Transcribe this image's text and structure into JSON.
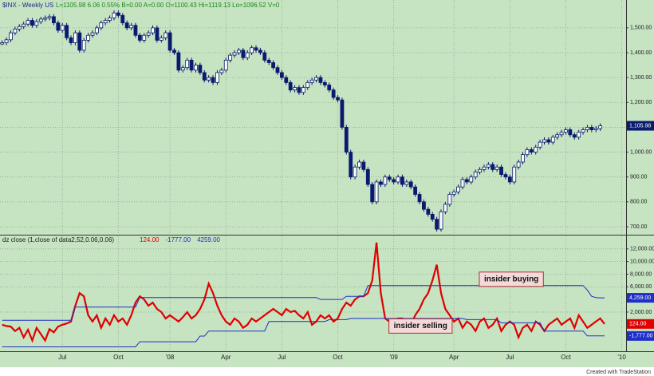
{
  "chart_data": [
    {
      "type": "candlestick",
      "title": "$INX - Weekly  US",
      "quote": "L=1105.98  6.06  0.55%  B=0.00  A=0.00  O=1100.43  Hi=1119.13  Lo=1096.52  V=0",
      "values": [
        1440,
        1452,
        1480,
        1495,
        1505,
        1515,
        1530,
        1510,
        1525,
        1535,
        1540,
        1545,
        1520,
        1490,
        1510,
        1460,
        1440,
        1480,
        1410,
        1450,
        1470,
        1480,
        1500,
        1520,
        1530,
        1540,
        1560,
        1550,
        1520,
        1500,
        1510,
        1470,
        1450,
        1470,
        1480,
        1500,
        1450,
        1460,
        1480,
        1410,
        1400,
        1330,
        1340,
        1370,
        1330,
        1350,
        1320,
        1290,
        1300,
        1280,
        1320,
        1330,
        1370,
        1390,
        1400,
        1410,
        1380,
        1400,
        1420,
        1410,
        1400,
        1370,
        1360,
        1340,
        1320,
        1300,
        1280,
        1250,
        1260,
        1240,
        1260,
        1280,
        1290,
        1300,
        1280,
        1270,
        1250,
        1220,
        1210,
        1100,
        1000,
        900,
        940,
        960,
        930,
        870,
        800,
        880,
        870,
        900,
        890,
        880,
        900,
        870,
        880,
        860,
        830,
        800,
        770,
        750,
        730,
        690,
        760,
        790,
        830,
        840,
        860,
        890,
        880,
        900,
        920,
        930,
        940,
        950,
        930,
        940,
        910,
        900,
        880,
        940,
        960,
        990,
        1010,
        1000,
        1020,
        1040,
        1050,
        1040,
        1060,
        1070,
        1080,
        1090,
        1070,
        1060,
        1080,
        1090,
        1100,
        1090,
        1095,
        1105.98
      ],
      "last_label": "1,105.98",
      "up_color": "#ffffff",
      "down_color": "#0a1a6e",
      "ylim": [
        671,
        1612
      ],
      "yticks": [
        {
          "value": 700,
          "label": "700.00"
        },
        {
          "value": 800,
          "label": "800.00"
        },
        {
          "value": 900,
          "label": "900.00"
        },
        {
          "value": 1000,
          "label": "1,000.00"
        },
        {
          "value": 1100,
          "label": "1,100.00"
        },
        {
          "value": 1200,
          "label": "1,200.00"
        },
        {
          "value": 1300,
          "label": "1,300.00"
        },
        {
          "value": 1400,
          "label": "1,400.00"
        },
        {
          "value": 1500,
          "label": "1,500.00"
        }
      ],
      "grid": true
    },
    {
      "type": "line",
      "title": "dz close (1,close of data2,52,0.06,0.06)",
      "xlim": [
        -0.5,
        145
      ],
      "xticks": [
        {
          "value": 14,
          "label": "Jul"
        },
        {
          "value": 27,
          "label": "Oct"
        },
        {
          "value": 39,
          "label": "'08"
        },
        {
          "value": 52,
          "label": "Apr"
        },
        {
          "value": 65,
          "label": "Jul"
        },
        {
          "value": 78,
          "label": "Oct"
        },
        {
          "value": 91,
          "label": "'09"
        },
        {
          "value": 105,
          "label": "Apr"
        },
        {
          "value": 118,
          "label": "Jul"
        },
        {
          "value": 131,
          "label": "Oct"
        },
        {
          "value": 144,
          "label": "'10"
        }
      ],
      "ylim": [
        -4200,
        14000
      ],
      "yticks": [
        {
          "value": 2000,
          "label": "2,000.00"
        },
        {
          "value": 6000,
          "label": "6,000.00"
        },
        {
          "value": 8000,
          "label": "8,000.00"
        },
        {
          "value": 10000,
          "label": "10,000.00"
        },
        {
          "value": 12000,
          "label": "12,000.00"
        }
      ],
      "grid": true,
      "series": [
        {
          "color": "#e00000",
          "width": 2.2,
          "header_label": "124.00",
          "last_label": "124.00",
          "values": [
            0,
            -200,
            -300,
            -1000,
            -500,
            -2000,
            -800,
            -2500,
            -500,
            -1500,
            -2500,
            -700,
            -1200,
            -300,
            0,
            200,
            500,
            3000,
            5000,
            4500,
            1500,
            500,
            1500,
            -500,
            1000,
            0,
            1500,
            500,
            1000,
            0,
            1500,
            3500,
            4500,
            4000,
            3000,
            3500,
            2500,
            2000,
            1000,
            1500,
            1000,
            500,
            1200,
            2000,
            1000,
            1500,
            2500,
            4000,
            6500,
            5000,
            3000,
            1500,
            500,
            0,
            1000,
            500,
            -500,
            0,
            1000,
            500,
            1000,
            1500,
            2000,
            2500,
            2000,
            1500,
            2500,
            2000,
            2200,
            1500,
            1000,
            2000,
            0,
            500,
            1500,
            1000,
            1500,
            500,
            1000,
            2500,
            3500,
            3000,
            4000,
            4500,
            4500,
            5000,
            7000,
            13000,
            5000,
            1000,
            500,
            0,
            1000,
            1000,
            500,
            0,
            1500,
            2500,
            4000,
            5000,
            7000,
            9500,
            5000,
            2500,
            1500,
            500,
            1000,
            -500,
            500,
            0,
            -1000,
            500,
            1000,
            -500,
            0,
            1000,
            -1000,
            0,
            500,
            0,
            -2000,
            -500,
            0,
            -1000,
            500,
            0,
            -1000,
            0,
            500,
            1000,
            0,
            500,
            1000,
            -500,
            1500,
            500,
            -500,
            0,
            500,
            1000,
            124
          ]
        },
        {
          "color": "#1f2fc8",
          "width": 1,
          "header_label": "-1777.00",
          "last_label": "-1,777.00",
          "values": [
            -3500,
            -3500,
            -3500,
            -3500,
            -3500,
            -3500,
            -3500,
            -3500,
            -3500,
            -3500,
            -3500,
            -3500,
            -3500,
            -3500,
            -3500,
            -3500,
            -3500,
            -3500,
            -3500,
            -3500,
            -3500,
            -3500,
            -3500,
            -3500,
            -3500,
            -3500,
            -3500,
            -3500,
            -3500,
            -3500,
            -3500,
            -3500,
            -2700,
            -2700,
            -2700,
            -2700,
            -2700,
            -2700,
            -2700,
            -2700,
            -2700,
            -2700,
            -2700,
            -2700,
            -2700,
            -2700,
            -1800,
            -1800,
            -1000,
            -1000,
            -1000,
            -1000,
            -1000,
            -1000,
            -1000,
            -1000,
            -1000,
            -1000,
            -1000,
            -1000,
            -1000,
            -1000,
            500,
            500,
            500,
            500,
            500,
            500,
            500,
            500,
            500,
            500,
            500,
            500,
            500,
            500,
            800,
            800,
            800,
            800,
            800,
            1000,
            1000,
            1000,
            1000,
            1000,
            1000,
            1000,
            1000,
            1000,
            1000,
            1000,
            1000,
            1000,
            1000,
            1000,
            1000,
            1000,
            1000,
            1000,
            1000,
            1000,
            1000,
            1000,
            1000,
            1000,
            1000,
            1000,
            800,
            800,
            800,
            800,
            800,
            800,
            800,
            800,
            300,
            300,
            300,
            300,
            300,
            300,
            300,
            300,
            300,
            300,
            -1000,
            -1000,
            -1000,
            -1000,
            -1000,
            -1000,
            -1000,
            -1000,
            -1000,
            -1000,
            -1777,
            -1777,
            -1777,
            -1777,
            -1777
          ]
        },
        {
          "color": "#1f2fc8",
          "width": 1,
          "header_label": "4259.00",
          "last_label": "4,259.00",
          "values": [
            700,
            700,
            700,
            700,
            700,
            700,
            700,
            700,
            700,
            700,
            700,
            700,
            700,
            700,
            700,
            700,
            700,
            2800,
            2800,
            2800,
            2800,
            2800,
            2800,
            2800,
            2800,
            2800,
            2800,
            2800,
            2800,
            2800,
            2800,
            2800,
            4300,
            4300,
            4300,
            4300,
            4300,
            4300,
            4300,
            4300,
            4300,
            4300,
            4300,
            4300,
            4300,
            4300,
            4300,
            4300,
            4300,
            4300,
            4300,
            4300,
            4300,
            4300,
            4300,
            4300,
            4300,
            4300,
            4300,
            4300,
            4300,
            4300,
            4300,
            4300,
            4300,
            4300,
            4300,
            4300,
            4300,
            4300,
            4300,
            4300,
            4300,
            4300,
            4000,
            4000,
            4000,
            4000,
            4000,
            4000,
            4500,
            4500,
            4500,
            4500,
            4500,
            6200,
            6200,
            6200,
            6200,
            6200,
            6200,
            6200,
            6200,
            6200,
            6200,
            6200,
            6200,
            6200,
            6200,
            6200,
            6200,
            6200,
            6200,
            6200,
            6200,
            6200,
            6200,
            6200,
            6200,
            6200,
            6200,
            6200,
            6200,
            6200,
            6200,
            6200,
            6200,
            6200,
            6200,
            6200,
            6200,
            6200,
            6200,
            6200,
            6200,
            6200,
            6200,
            6200,
            6200,
            6200,
            6200,
            6200,
            6200,
            6200,
            6200,
            6200,
            5500,
            4500,
            4300,
            4259,
            4259
          ]
        }
      ],
      "annotations": [
        {
          "text": "insider buying",
          "x": 112,
          "y": 7200
        },
        {
          "text": "insider selling",
          "x": 91,
          "y": -200
        }
      ]
    },
    {
      "footer": "Created with TradeStation"
    }
  ]
}
